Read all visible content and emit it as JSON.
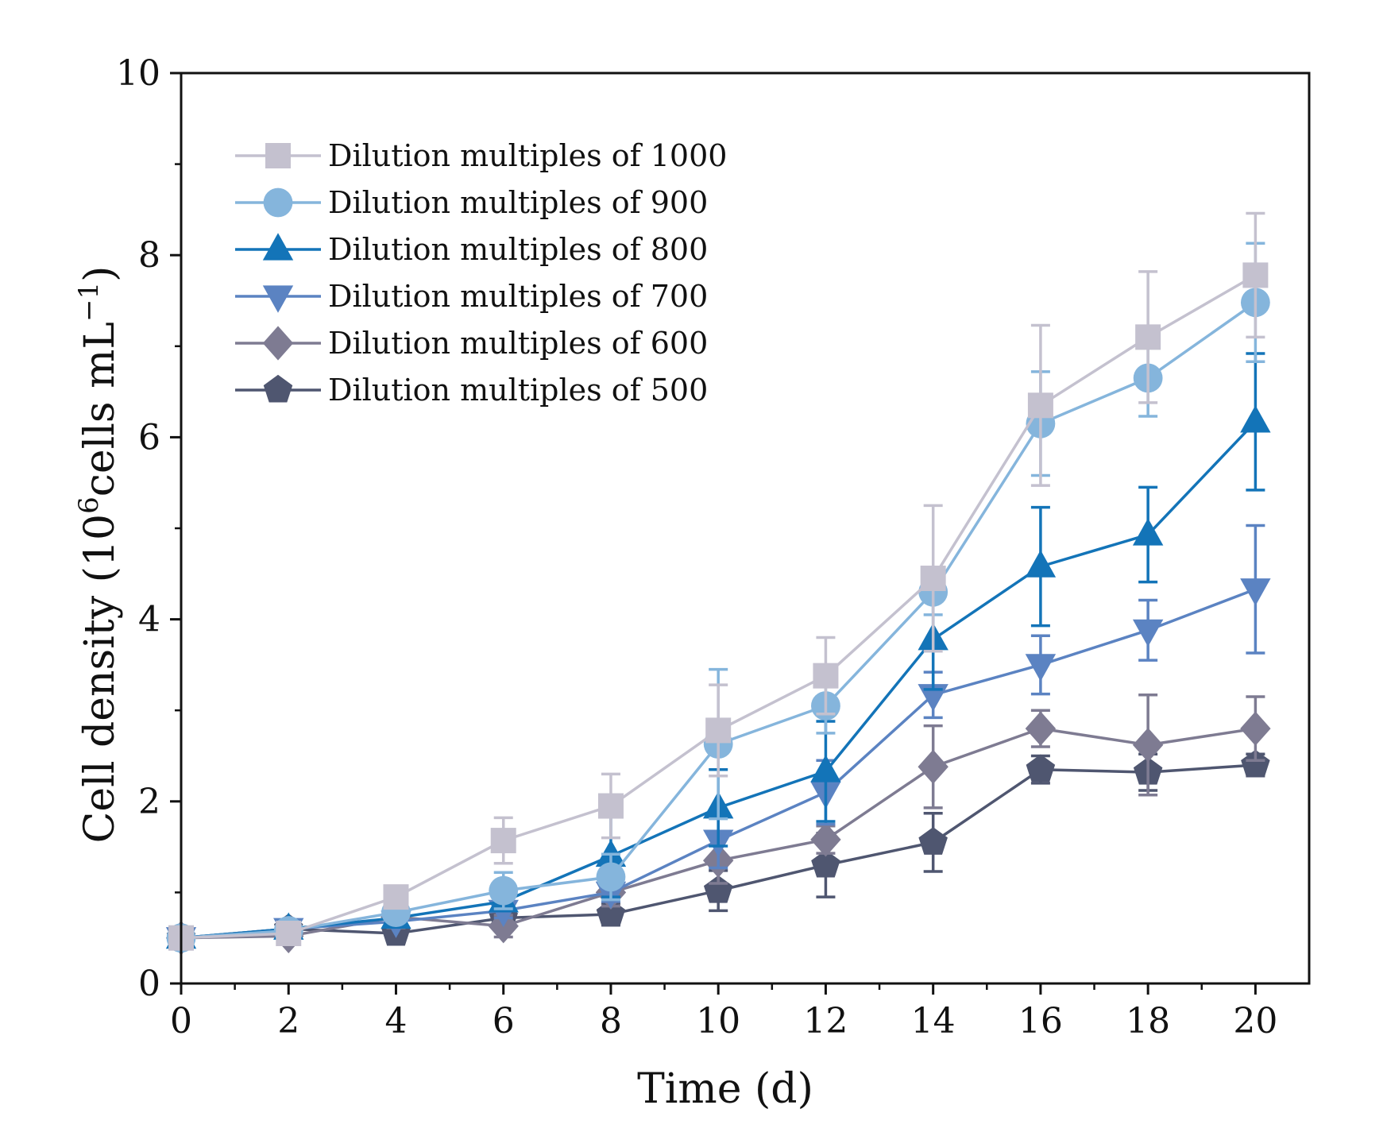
{
  "chart_data": {
    "type": "line",
    "title": "",
    "xlabel": "Time (d)",
    "ylabel": {
      "prefix": "Cell density (10",
      "exponent": "6",
      "middle": "cells mL",
      "unit_exponent": "−1",
      "suffix": ")"
    },
    "xlim": [
      0,
      21
    ],
    "ylim": [
      0,
      10
    ],
    "x_ticks": [
      "0",
      "2",
      "4",
      "6",
      "8",
      "10",
      "12",
      "14",
      "16",
      "18",
      "20"
    ],
    "y_ticks": [
      "0",
      "2",
      "4",
      "6",
      "8",
      "10"
    ],
    "grid": false,
    "legend_position": "top-left",
    "x": [
      0,
      2,
      4,
      6,
      8,
      10,
      12,
      14,
      16,
      18,
      20
    ],
    "series": [
      {
        "name": "Dilution multiples of 1000",
        "marker": "square",
        "color": "#c4c1cf",
        "values": [
          0.5,
          0.55,
          0.95,
          1.57,
          1.95,
          2.78,
          3.38,
          4.45,
          6.35,
          7.1,
          7.78
        ],
        "errors": [
          0.06,
          0.06,
          0.12,
          0.25,
          0.35,
          0.5,
          0.42,
          0.8,
          0.88,
          0.72,
          0.68
        ]
      },
      {
        "name": "Dilution multiples of 900",
        "marker": "circle",
        "color": "#85b5dc",
        "values": [
          0.5,
          0.58,
          0.78,
          1.02,
          1.17,
          2.63,
          3.05,
          4.3,
          6.15,
          6.65,
          7.48
        ],
        "errors": [
          0.06,
          0.06,
          0.08,
          0.2,
          0.25,
          0.82,
          0.3,
          0.25,
          0.57,
          0.42,
          0.65
        ]
      },
      {
        "name": "Dilution multiples of 800",
        "marker": "triangle-up",
        "color": "#1374b8",
        "values": [
          0.5,
          0.6,
          0.72,
          0.9,
          1.4,
          1.93,
          2.33,
          3.78,
          4.58,
          4.93,
          6.17
        ],
        "errors": [
          0.05,
          0.06,
          0.08,
          0.1,
          0.45,
          0.42,
          0.55,
          0.55,
          0.65,
          0.52,
          0.75
        ]
      },
      {
        "name": "Dilution multiples of 700",
        "marker": "triangle-down",
        "color": "#5b83c2",
        "values": [
          0.5,
          0.6,
          0.68,
          0.8,
          1.0,
          1.57,
          2.1,
          3.17,
          3.5,
          3.88,
          4.33
        ],
        "errors": [
          0.05,
          0.05,
          0.06,
          0.08,
          0.1,
          0.3,
          0.35,
          0.25,
          0.32,
          0.33,
          0.7
        ]
      },
      {
        "name": "Dilution multiples of 600",
        "marker": "diamond",
        "color": "#7e7b92",
        "values": [
          0.5,
          0.52,
          0.73,
          0.63,
          1.0,
          1.35,
          1.58,
          2.38,
          2.8,
          2.62,
          2.8
        ],
        "errors": [
          0.05,
          0.05,
          0.12,
          0.12,
          0.15,
          0.25,
          0.15,
          0.45,
          0.2,
          0.55,
          0.35
        ]
      },
      {
        "name": "Dilution multiples of 500",
        "marker": "pentagon",
        "color": "#4f5670",
        "values": [
          0.5,
          0.6,
          0.55,
          0.72,
          0.76,
          1.02,
          1.3,
          1.55,
          2.35,
          2.32,
          2.4
        ],
        "errors": [
          0.05,
          0.05,
          0.08,
          0.1,
          0.12,
          0.22,
          0.35,
          0.32,
          0.15,
          0.2,
          0.12
        ]
      }
    ]
  }
}
